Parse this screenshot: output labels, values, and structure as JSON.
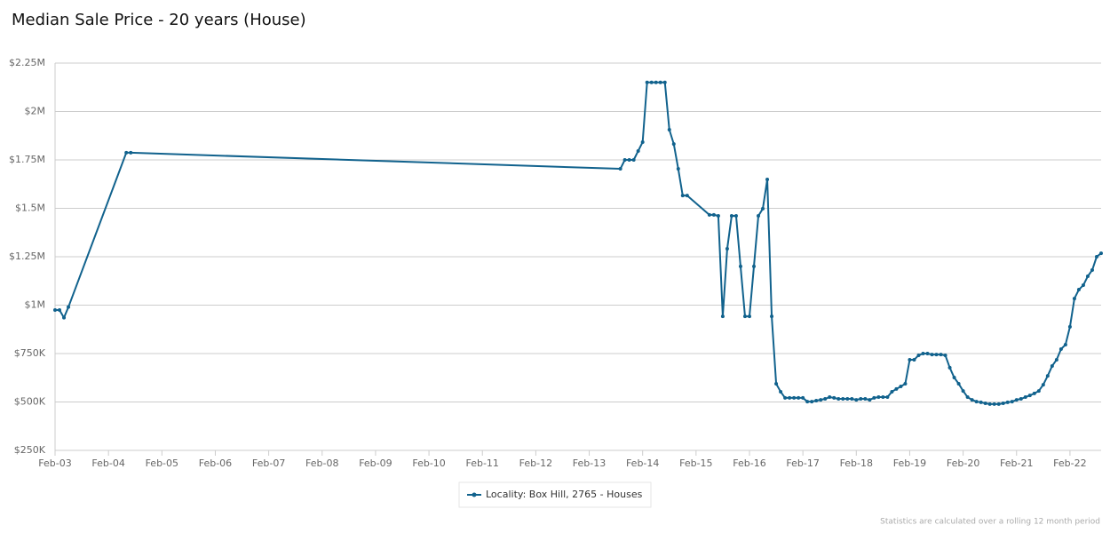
{
  "chart_data": {
    "type": "line",
    "title": "Median Sale Price - 20 years (House)",
    "footnote": "Statistics are calculated over a rolling 12 month period",
    "x": [
      "Feb-03",
      "Mar-03",
      "Apr-03",
      "May-03",
      "Jun-04",
      "Jul-04",
      "Sep-13",
      "Oct-13",
      "Nov-13",
      "Dec-13",
      "Jan-14",
      "Feb-14",
      "Mar-14",
      "Apr-14",
      "May-14",
      "Jun-14",
      "Jul-14",
      "Aug-14",
      "Sep-14",
      "Oct-14",
      "Nov-14",
      "Dec-14",
      "May-15",
      "Jun-15",
      "Jul-15",
      "Aug-15",
      "Sep-15",
      "Oct-15",
      "Nov-15",
      "Dec-15",
      "Jan-16",
      "Feb-16",
      "Mar-16",
      "Apr-16",
      "May-16",
      "Jun-16",
      "Jul-16",
      "Aug-16",
      "Sep-16",
      "Oct-16",
      "Nov-16",
      "Dec-16",
      "Jan-17",
      "Feb-17",
      "Mar-17",
      "Apr-17",
      "May-17",
      "Jun-17",
      "Jul-17",
      "Aug-17",
      "Sep-17",
      "Oct-17",
      "Nov-17",
      "Dec-17",
      "Jan-18",
      "Feb-18",
      "Mar-18",
      "Apr-18",
      "May-18",
      "Jun-18",
      "Jul-18",
      "Aug-18",
      "Sep-18",
      "Oct-18",
      "Nov-18",
      "Dec-18",
      "Jan-19",
      "Feb-19",
      "Mar-19",
      "Apr-19",
      "May-19",
      "Jun-19",
      "Jul-19",
      "Aug-19",
      "Sep-19",
      "Oct-19",
      "Nov-19",
      "Dec-19",
      "Jan-20",
      "Feb-20",
      "Mar-20",
      "Apr-20",
      "May-20",
      "Jun-20",
      "Jul-20",
      "Aug-20",
      "Sep-20",
      "Oct-20",
      "Nov-20",
      "Dec-20",
      "Jan-21",
      "Feb-21",
      "Mar-21",
      "Apr-21",
      "May-21",
      "Jun-21",
      "Jul-21",
      "Aug-21",
      "Sep-21",
      "Oct-21",
      "Nov-21",
      "Dec-21",
      "Jan-22",
      "Feb-22",
      "Mar-22",
      "Apr-22",
      "May-22",
      "Jun-22",
      "Jul-22",
      "Aug-22",
      "Sep-22"
    ],
    "series": [
      {
        "name": "Locality: Box Hill, 2765 - Houses",
        "color": "#11628d",
        "values": [
          975000,
          975000,
          935000,
          990000,
          1787000,
          1787000,
          1704000,
          1750000,
          1750000,
          1750000,
          1796000,
          1842000,
          2150000,
          2150000,
          2150000,
          2150000,
          2150000,
          1906000,
          1832000,
          1704000,
          1566000,
          1566000,
          1466000,
          1466000,
          1461000,
          942000,
          1291000,
          1461000,
          1461000,
          1200000,
          942000,
          942000,
          1200000,
          1461000,
          1498000,
          1649000,
          942000,
          594000,
          553000,
          521000,
          521000,
          521000,
          521000,
          521000,
          502000,
          502000,
          507000,
          511000,
          516000,
          525000,
          521000,
          516000,
          516000,
          516000,
          516000,
          511000,
          516000,
          516000,
          511000,
          521000,
          525000,
          525000,
          525000,
          553000,
          567000,
          580000,
          594000,
          718000,
          718000,
          741000,
          750000,
          750000,
          745000,
          745000,
          745000,
          741000,
          677000,
          626000,
          594000,
          557000,
          525000,
          511000,
          502000,
          498000,
          493000,
          489000,
          489000,
          489000,
          493000,
          498000,
          502000,
          511000,
          516000,
          525000,
          534000,
          544000,
          557000,
          589000,
          635000,
          686000,
          718000,
          773000,
          796000,
          888000,
          1034000,
          1080000,
          1103000,
          1149000,
          1181000,
          1250000,
          1268000
        ]
      }
    ],
    "xlim": [
      "Feb-03",
      "Sep-22"
    ],
    "xticks": [
      "Feb-03",
      "Feb-04",
      "Feb-05",
      "Feb-06",
      "Feb-07",
      "Feb-08",
      "Feb-09",
      "Feb-10",
      "Feb-11",
      "Feb-12",
      "Feb-13",
      "Feb-14",
      "Feb-15",
      "Feb-16",
      "Feb-17",
      "Feb-18",
      "Feb-19",
      "Feb-20",
      "Feb-21",
      "Feb-22"
    ],
    "ylim": [
      250000,
      2250000
    ],
    "yticks": [
      {
        "value": 250000,
        "label": "$250K"
      },
      {
        "value": 500000,
        "label": "$500K"
      },
      {
        "value": 750000,
        "label": "$750K"
      },
      {
        "value": 1000000,
        "label": "$1M"
      },
      {
        "value": 1250000,
        "label": "$1.25M"
      },
      {
        "value": 1500000,
        "label": "$1.5M"
      },
      {
        "value": 1750000,
        "label": "$1.75M"
      },
      {
        "value": 2000000,
        "label": "$2M"
      },
      {
        "value": 2250000,
        "label": "$2.25M"
      }
    ],
    "grid": true
  }
}
